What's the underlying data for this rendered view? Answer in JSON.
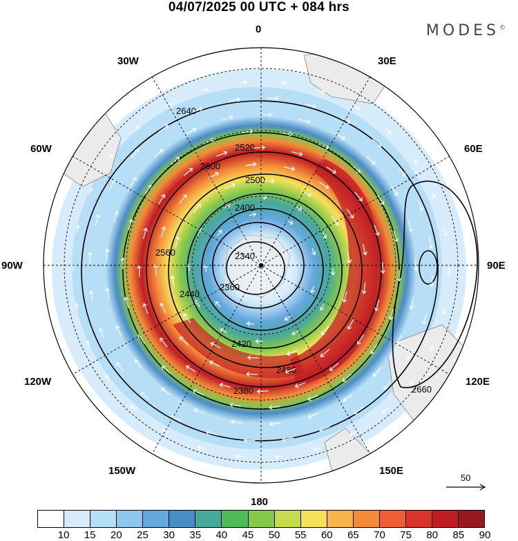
{
  "header": {
    "title": "04/07/2025  00 UTC  + 084 hrs",
    "brand": "MODES",
    "brand_mark": "©"
  },
  "map": {
    "projection": "south-polar-stereographic",
    "longitude_labels": {
      "lon_0": "0",
      "lon_30e": "30E",
      "lon_60e": "60E",
      "lon_90e": "90E",
      "lon_120e": "120E",
      "lon_150e": "150E",
      "lon_180": "180",
      "lon_150w": "150W",
      "lon_120w": "120W",
      "lon_90w": "90W",
      "lon_60w": "60W",
      "lon_30w": "30W"
    },
    "contour_labels": [
      "2640",
      "2600",
      "2560",
      "2520",
      "2500",
      "2480",
      "2440",
      "2420",
      "2400",
      "2380",
      "2360",
      "2340",
      "2660"
    ],
    "reference_vector": {
      "label": "50"
    }
  },
  "colorbar": {
    "colors": [
      "#ffffff",
      "#d6ecfa",
      "#b6def6",
      "#8fc6ec",
      "#64a8de",
      "#4a8cc6",
      "#48a89a",
      "#4fba58",
      "#86c84a",
      "#c6dc50",
      "#f6e05a",
      "#f6b44a",
      "#f48a3a",
      "#ec5e34",
      "#d8342c",
      "#c01c24",
      "#961a1e"
    ],
    "labels": [
      "10",
      "15",
      "20",
      "25",
      "30",
      "35",
      "40",
      "45",
      "50",
      "55",
      "60",
      "65",
      "70",
      "75",
      "80",
      "85",
      "90"
    ]
  },
  "colors": {
    "frame": "#000000",
    "land": "#ebebeb"
  }
}
